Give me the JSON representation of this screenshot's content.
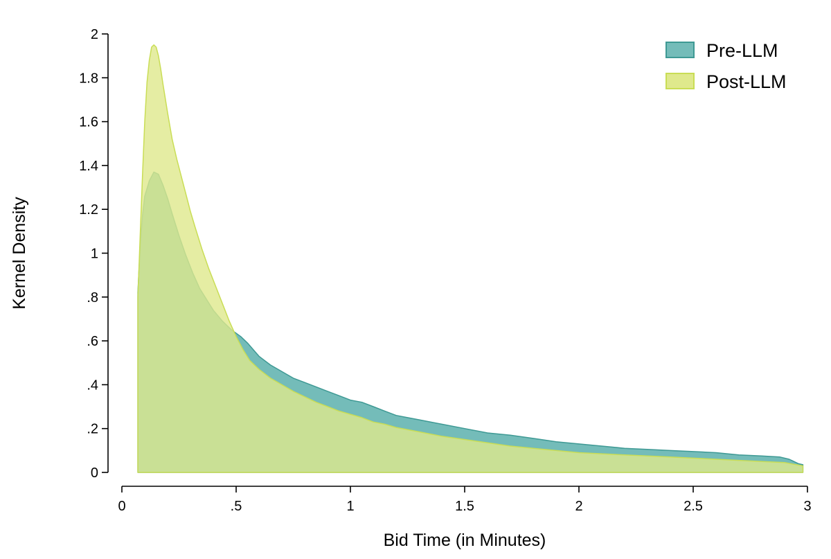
{
  "chart_data": {
    "type": "area",
    "title": "",
    "xlabel": "Bid Time (in Minutes)",
    "ylabel": "Kernel Density",
    "xlim": [
      0,
      3
    ],
    "ylim": [
      0,
      2
    ],
    "x_ticks": [
      {
        "value": 0,
        "label": "0"
      },
      {
        "value": 0.5,
        "label": ".5"
      },
      {
        "value": 1,
        "label": "1"
      },
      {
        "value": 1.5,
        "label": "1.5"
      },
      {
        "value": 2,
        "label": "2"
      },
      {
        "value": 2.5,
        "label": "2.5"
      },
      {
        "value": 3,
        "label": "3"
      }
    ],
    "y_ticks": [
      {
        "value": 0,
        "label": "0"
      },
      {
        "value": 0.2,
        "label": ".2"
      },
      {
        "value": 0.4,
        "label": ".4"
      },
      {
        "value": 0.6,
        "label": ".6"
      },
      {
        "value": 0.8,
        "label": ".8"
      },
      {
        "value": 1,
        "label": "1"
      },
      {
        "value": 1.2,
        "label": "1.2"
      },
      {
        "value": 1.4,
        "label": "1.4"
      },
      {
        "value": 1.6,
        "label": "1.6"
      },
      {
        "value": 1.8,
        "label": "1.8"
      },
      {
        "value": 2,
        "label": "2"
      }
    ],
    "grid": false,
    "legend_position": "top-right",
    "series": [
      {
        "name": "Pre-LLM",
        "fill": "#74bcb9",
        "stroke": "#3e9994",
        "points": [
          [
            0.07,
            0
          ],
          [
            0.07,
            0.82
          ],
          [
            0.08,
            1.03
          ],
          [
            0.09,
            1.17
          ],
          [
            0.1,
            1.26
          ],
          [
            0.12,
            1.33
          ],
          [
            0.14,
            1.37
          ],
          [
            0.16,
            1.36
          ],
          [
            0.18,
            1.31
          ],
          [
            0.2,
            1.25
          ],
          [
            0.22,
            1.18
          ],
          [
            0.25,
            1.08
          ],
          [
            0.28,
            0.99
          ],
          [
            0.31,
            0.91
          ],
          [
            0.34,
            0.84
          ],
          [
            0.37,
            0.79
          ],
          [
            0.4,
            0.74
          ],
          [
            0.44,
            0.69
          ],
          [
            0.48,
            0.65
          ],
          [
            0.52,
            0.62
          ],
          [
            0.55,
            0.59
          ],
          [
            0.6,
            0.53
          ],
          [
            0.65,
            0.49
          ],
          [
            0.7,
            0.46
          ],
          [
            0.75,
            0.43
          ],
          [
            0.8,
            0.41
          ],
          [
            0.85,
            0.39
          ],
          [
            0.9,
            0.37
          ],
          [
            0.95,
            0.35
          ],
          [
            1.0,
            0.33
          ],
          [
            1.05,
            0.32
          ],
          [
            1.1,
            0.3
          ],
          [
            1.15,
            0.28
          ],
          [
            1.2,
            0.26
          ],
          [
            1.25,
            0.25
          ],
          [
            1.3,
            0.24
          ],
          [
            1.4,
            0.22
          ],
          [
            1.5,
            0.2
          ],
          [
            1.6,
            0.18
          ],
          [
            1.7,
            0.17
          ],
          [
            1.8,
            0.155
          ],
          [
            1.9,
            0.14
          ],
          [
            2.0,
            0.13
          ],
          [
            2.1,
            0.12
          ],
          [
            2.2,
            0.11
          ],
          [
            2.3,
            0.105
          ],
          [
            2.4,
            0.1
          ],
          [
            2.5,
            0.095
          ],
          [
            2.6,
            0.09
          ],
          [
            2.7,
            0.08
          ],
          [
            2.8,
            0.075
          ],
          [
            2.88,
            0.07
          ],
          [
            2.92,
            0.06
          ],
          [
            2.96,
            0.04
          ],
          [
            2.98,
            0.035
          ],
          [
            2.98,
            0
          ]
        ]
      },
      {
        "name": "Post-LLM",
        "fill": "#dfe98c",
        "stroke": "#c9dd55",
        "points": [
          [
            0.07,
            0
          ],
          [
            0.07,
            0.8
          ],
          [
            0.08,
            1.08
          ],
          [
            0.09,
            1.35
          ],
          [
            0.1,
            1.6
          ],
          [
            0.11,
            1.78
          ],
          [
            0.12,
            1.88
          ],
          [
            0.13,
            1.94
          ],
          [
            0.14,
            1.95
          ],
          [
            0.15,
            1.94
          ],
          [
            0.16,
            1.9
          ],
          [
            0.17,
            1.84
          ],
          [
            0.18,
            1.77
          ],
          [
            0.2,
            1.64
          ],
          [
            0.22,
            1.52
          ],
          [
            0.24,
            1.43
          ],
          [
            0.26,
            1.35
          ],
          [
            0.28,
            1.27
          ],
          [
            0.3,
            1.19
          ],
          [
            0.32,
            1.12
          ],
          [
            0.35,
            1.02
          ],
          [
            0.38,
            0.93
          ],
          [
            0.41,
            0.85
          ],
          [
            0.44,
            0.77
          ],
          [
            0.47,
            0.69
          ],
          [
            0.5,
            0.62
          ],
          [
            0.53,
            0.56
          ],
          [
            0.56,
            0.51
          ],
          [
            0.6,
            0.47
          ],
          [
            0.65,
            0.43
          ],
          [
            0.7,
            0.4
          ],
          [
            0.75,
            0.37
          ],
          [
            0.8,
            0.345
          ],
          [
            0.85,
            0.32
          ],
          [
            0.9,
            0.3
          ],
          [
            0.95,
            0.28
          ],
          [
            1.0,
            0.265
          ],
          [
            1.05,
            0.25
          ],
          [
            1.1,
            0.23
          ],
          [
            1.15,
            0.22
          ],
          [
            1.2,
            0.205
          ],
          [
            1.3,
            0.185
          ],
          [
            1.4,
            0.165
          ],
          [
            1.5,
            0.15
          ],
          [
            1.6,
            0.135
          ],
          [
            1.7,
            0.12
          ],
          [
            1.8,
            0.11
          ],
          [
            1.9,
            0.1
          ],
          [
            2.0,
            0.09
          ],
          [
            2.1,
            0.085
          ],
          [
            2.2,
            0.08
          ],
          [
            2.3,
            0.075
          ],
          [
            2.4,
            0.07
          ],
          [
            2.5,
            0.065
          ],
          [
            2.6,
            0.06
          ],
          [
            2.7,
            0.055
          ],
          [
            2.8,
            0.05
          ],
          [
            2.9,
            0.045
          ],
          [
            2.98,
            0.03
          ],
          [
            2.98,
            0
          ]
        ]
      }
    ]
  }
}
